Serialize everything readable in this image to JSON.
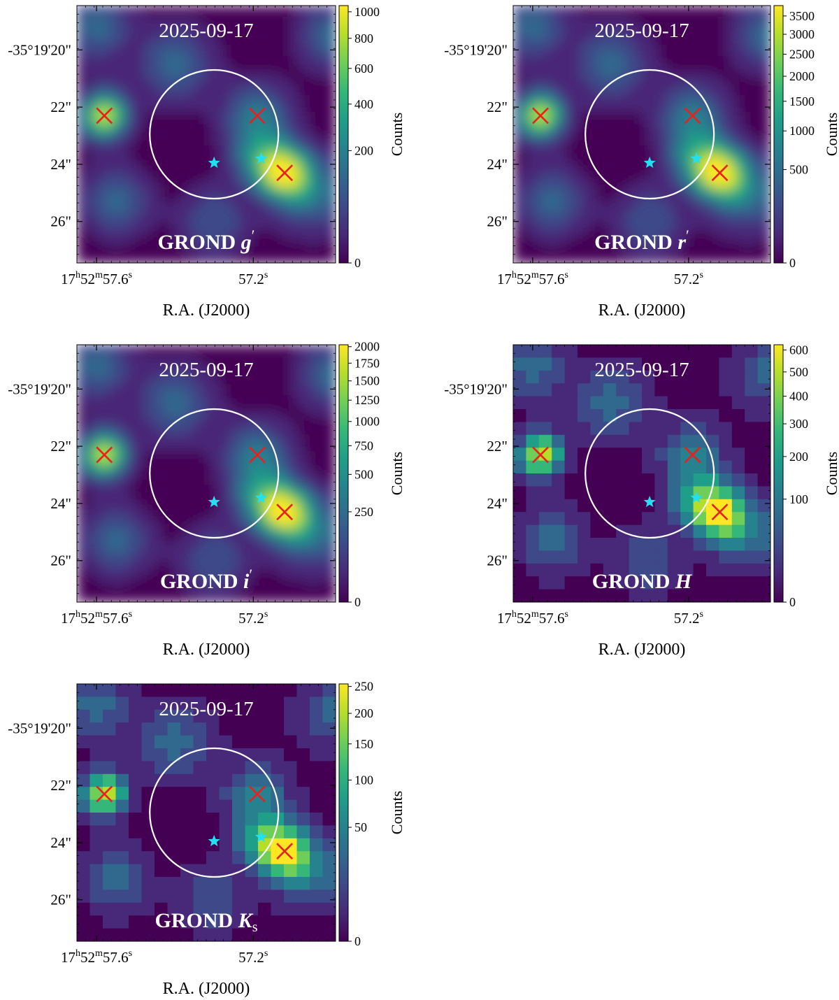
{
  "figure": {
    "xlabel": "R.A. (J2000)",
    "cbar_label": "Counts",
    "ra_ticks": [
      {
        "h": "17",
        "m": "52",
        "s": "57.6",
        "ra_sec": 57.6
      },
      {
        "s": "57.2",
        "ra_sec": 57.2
      }
    ],
    "dec_ticks": [
      {
        "label": "-35°19'20\"",
        "dec_arcsec": 20
      },
      {
        "label": "22\"",
        "dec_arcsec": 22
      },
      {
        "label": "24\"",
        "dec_arcsec": 24
      },
      {
        "label": "26\"",
        "dec_arcsec": 26
      }
    ],
    "ra_range_sec": [
      57.65,
      56.99
    ],
    "dec_range_arcsec": [
      18.45,
      27.45
    ],
    "circle": {
      "ra_sec": 57.3,
      "dec_arcsec": 22.95,
      "radius_arcsec": 2.25,
      "color": "#ffffff"
    },
    "cross_color": "#e8201e",
    "star_color": "#22e0f0",
    "colormap": "viridis",
    "cbar_stretch": "sqrt",
    "heatmap_colors": [
      "#440154",
      "#482878",
      "#3e4989",
      "#31688e",
      "#26828e",
      "#1f9e89",
      "#35b779",
      "#6ece58",
      "#b5de2b",
      "#fde725"
    ]
  },
  "chart_data": [
    {
      "type": "heatmap",
      "date": "2025-09-17",
      "instrument": "GROND",
      "band": "g",
      "band_mark": "′",
      "pixelation": "smooth",
      "cbar_ticks": [
        0,
        200,
        400,
        600,
        800,
        1000
      ],
      "cbar_max": 1050,
      "crosses": [
        {
          "ra_sec": 57.58,
          "dec_arcsec": 22.3
        },
        {
          "ra_sec": 57.19,
          "dec_arcsec": 22.3
        },
        {
          "ra_sec": 57.12,
          "dec_arcsec": 24.3
        }
      ],
      "stars": [
        {
          "ra_sec": 57.3,
          "dec_arcsec": 23.95
        },
        {
          "ra_sec": 57.18,
          "dec_arcsec": 23.8
        }
      ]
    },
    {
      "type": "heatmap",
      "date": "2025-09-17",
      "instrument": "GROND",
      "band": "r",
      "band_mark": "′",
      "pixelation": "smooth",
      "cbar_ticks": [
        0,
        500,
        1000,
        1500,
        2000,
        2500,
        3000,
        3500
      ],
      "cbar_max": 3800,
      "crosses": [
        {
          "ra_sec": 57.58,
          "dec_arcsec": 22.3
        },
        {
          "ra_sec": 57.19,
          "dec_arcsec": 22.3
        },
        {
          "ra_sec": 57.12,
          "dec_arcsec": 24.3
        }
      ],
      "stars": [
        {
          "ra_sec": 57.3,
          "dec_arcsec": 23.95
        },
        {
          "ra_sec": 57.18,
          "dec_arcsec": 23.8
        }
      ]
    },
    {
      "type": "heatmap",
      "date": "2025-09-17",
      "instrument": "GROND",
      "band": "i",
      "band_mark": "′",
      "pixelation": "smooth",
      "cbar_ticks": [
        0,
        250,
        500,
        750,
        1000,
        1250,
        1500,
        1750,
        2000
      ],
      "cbar_max": 2030,
      "crosses": [
        {
          "ra_sec": 57.58,
          "dec_arcsec": 22.3
        },
        {
          "ra_sec": 57.19,
          "dec_arcsec": 22.3
        },
        {
          "ra_sec": 57.12,
          "dec_arcsec": 24.3
        }
      ],
      "stars": [
        {
          "ra_sec": 57.3,
          "dec_arcsec": 23.95
        },
        {
          "ra_sec": 57.18,
          "dec_arcsec": 23.8
        }
      ]
    },
    {
      "type": "heatmap",
      "date": "2025-09-17",
      "instrument": "GROND",
      "band": "H",
      "band_mark": "",
      "pixelation": "blocky",
      "cbar_ticks": [
        0,
        100,
        200,
        300,
        400,
        500,
        600
      ],
      "cbar_max": 625,
      "crosses": [
        {
          "ra_sec": 57.58,
          "dec_arcsec": 22.3
        },
        {
          "ra_sec": 57.19,
          "dec_arcsec": 22.3
        },
        {
          "ra_sec": 57.12,
          "dec_arcsec": 24.3
        }
      ],
      "stars": [
        {
          "ra_sec": 57.3,
          "dec_arcsec": 23.95
        },
        {
          "ra_sec": 57.18,
          "dec_arcsec": 23.8
        }
      ]
    },
    {
      "type": "heatmap",
      "date": "2025-09-17",
      "instrument": "GROND",
      "band": "K",
      "band_sub": "s",
      "band_mark": "",
      "pixelation": "blocky",
      "cbar_ticks": [
        0,
        50,
        100,
        150,
        200,
        250
      ],
      "cbar_max": 255,
      "crosses": [
        {
          "ra_sec": 57.58,
          "dec_arcsec": 22.3
        },
        {
          "ra_sec": 57.19,
          "dec_arcsec": 22.3
        },
        {
          "ra_sec": 57.12,
          "dec_arcsec": 24.3
        }
      ],
      "stars": [
        {
          "ra_sec": 57.3,
          "dec_arcsec": 23.95
        },
        {
          "ra_sec": 57.18,
          "dec_arcsec": 23.8
        }
      ]
    }
  ]
}
